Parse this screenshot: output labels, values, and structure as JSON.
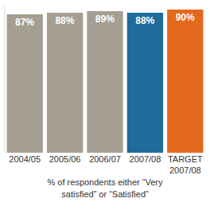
{
  "chart_data": {
    "type": "bar",
    "x_label": "% of respondents either “Very satisfied” or “Satisfied”",
    "categories": [
      "2004/05",
      "2005/06",
      "2006/07",
      "2007/08",
      "TARGET 2007/08"
    ],
    "values": [
      87,
      88,
      89,
      88,
      90
    ],
    "value_labels": [
      "87%",
      "88%",
      "89%",
      "88%",
      "90%"
    ],
    "colors": [
      "#a59f91",
      "#a59f91",
      "#a59f91",
      "#1f6b9c",
      "#e4681e"
    ],
    "ylim": [
      0,
      92
    ],
    "data_labels": true,
    "grid": false,
    "tick_labels": "x"
  }
}
